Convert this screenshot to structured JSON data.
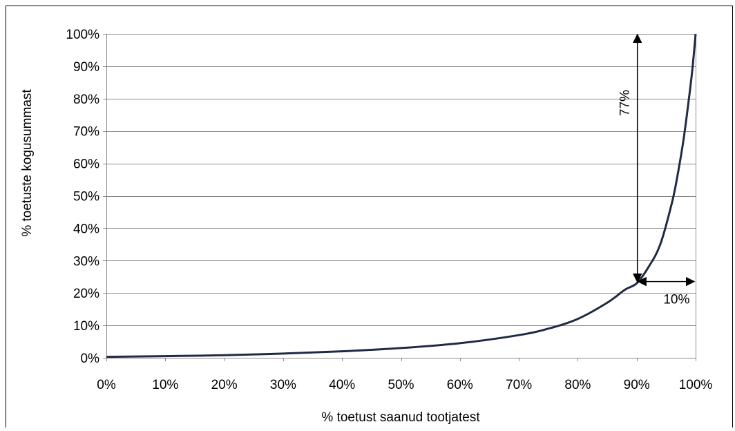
{
  "chart_data": {
    "type": "line",
    "title": "",
    "xlabel": "% toetust saanud tootjatest",
    "ylabel": "% toetuste kogusummast",
    "xlim": [
      0,
      100
    ],
    "ylim": [
      0,
      100
    ],
    "grid": "horizontal",
    "x_ticks": [
      "0%",
      "10%",
      "20%",
      "30%",
      "40%",
      "50%",
      "60%",
      "70%",
      "80%",
      "90%",
      "100%"
    ],
    "y_ticks": [
      "0%",
      "10%",
      "20%",
      "30%",
      "40%",
      "50%",
      "60%",
      "70%",
      "80%",
      "90%",
      "100%"
    ],
    "series": [
      {
        "color": "#1f2a44",
        "x": [
          0,
          10,
          20,
          30,
          40,
          50,
          60,
          70,
          75,
          80,
          85,
          88,
          90,
          92,
          94,
          96,
          97,
          98,
          99,
          99.5,
          100
        ],
        "y": [
          0.3,
          0.5,
          0.8,
          1.3,
          2.0,
          3.0,
          4.5,
          7.0,
          9.0,
          12.0,
          17.0,
          21.0,
          23.0,
          28.0,
          35.0,
          48.0,
          57.0,
          68.0,
          82.0,
          90.0,
          100.0
        ]
      }
    ],
    "annotations": [
      {
        "text": "77%",
        "type": "vertical-double-arrow",
        "x": 90,
        "y_from": 23,
        "y_to": 100
      },
      {
        "text": "10%",
        "type": "horizontal-double-arrow",
        "y": 23,
        "x_from": 90,
        "x_to": 100
      }
    ]
  }
}
